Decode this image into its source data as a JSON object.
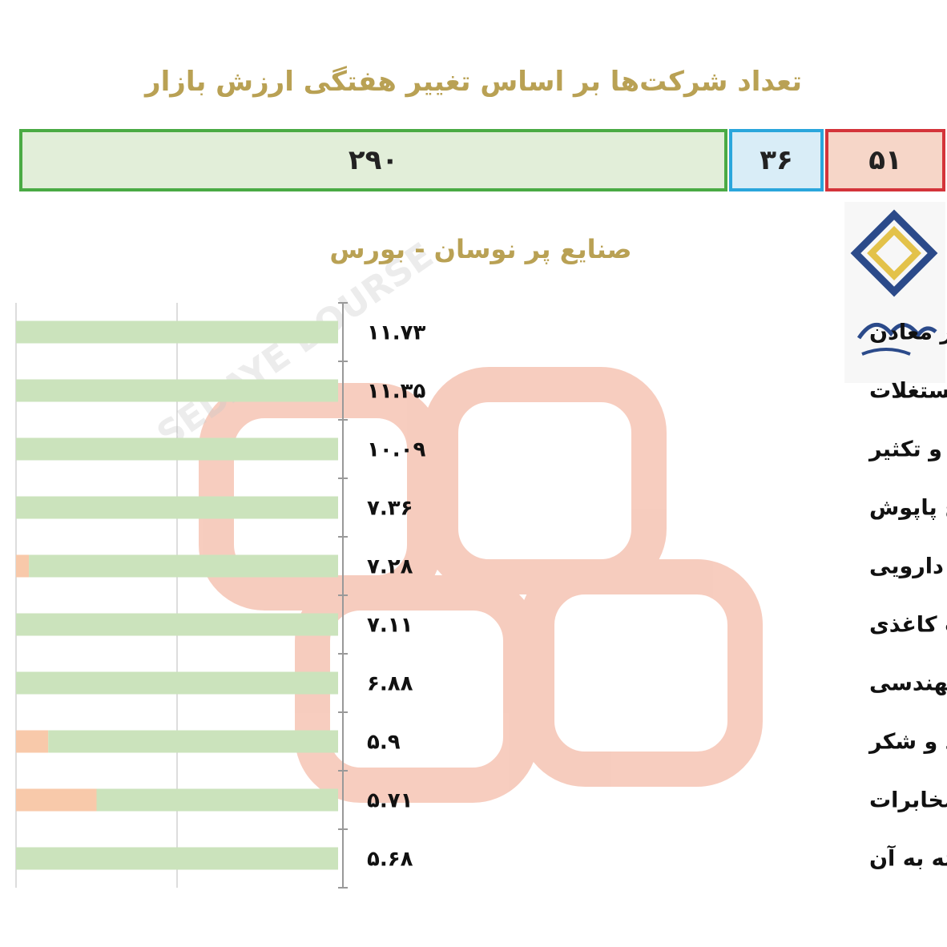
{
  "title": "تعداد شرکت‌ها بر اساس تغییر هفتگی ارزش بازار",
  "counts": {
    "up": {
      "value": "۲۹۰",
      "color": "#4aaa44"
    },
    "flat": {
      "value": "۳۶",
      "color": "#2aa6dc"
    },
    "down": {
      "value": "۵۱",
      "color": "#d4343a"
    }
  },
  "chart_data": {
    "type": "bar",
    "title": "صنایع پر نوسان - بورس",
    "orientation": "horizontal",
    "categories": [
      "استخراج سایر معادن",
      "انبوه سازی املاک و مستغلات",
      "انتشار، چاپ و تکثیر",
      "دباغی، پرداخت چرم و ساخت انواع پاپوش",
      "مواد و محصولات دارویی",
      "محصولات کاغذی",
      "خدمات فنی و مهندسی",
      "قند و شکر",
      "مخابرات",
      "کشاورزی، دامپروری و خدمات وابسته به آن"
    ],
    "value_labels": [
      "۱۱.۷۳",
      "۱۱.۳۵",
      "۱۰.۰۹",
      "۷.۳۶",
      "۷.۲۸",
      "۷.۱۱",
      "۶.۸۸",
      "۵.۹",
      "۵.۷۱",
      "۵.۶۸"
    ],
    "values": [
      11.73,
      11.35,
      10.09,
      7.36,
      7.28,
      7.11,
      6.88,
      5.9,
      5.71,
      5.68
    ],
    "series": [
      {
        "color": "#cbe3bc",
        "values": [
          1.0,
          1.0,
          1.0,
          1.0,
          0.96,
          1.0,
          1.0,
          0.9,
          0.75,
          1.0
        ]
      },
      {
        "color": "#f8c9aa",
        "values": [
          0.0,
          0.0,
          0.0,
          0.0,
          0.04,
          0.0,
          0.0,
          0.1,
          0.25,
          0.0
        ]
      }
    ],
    "xlim": [
      0,
      1
    ],
    "grid": true
  }
}
